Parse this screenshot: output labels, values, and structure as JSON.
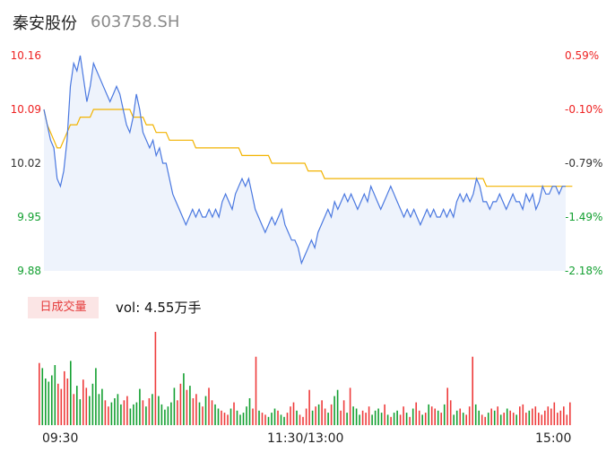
{
  "header": {
    "name": "秦安股份",
    "code": "603758.SH"
  },
  "price_axis": [
    {
      "price": "10.16",
      "pct": "0.59%",
      "color": "red"
    },
    {
      "price": "10.09",
      "pct": "-0.10%",
      "color": "red"
    },
    {
      "price": "10.02",
      "pct": "-0.79%",
      "color": "dark"
    },
    {
      "price": "9.95",
      "pct": "-1.49%",
      "color": "green"
    },
    {
      "price": "9.88",
      "pct": "-2.18%",
      "color": "green"
    }
  ],
  "volume": {
    "tab_label": "日成交量",
    "vol_text": "vol: 4.55万手"
  },
  "time_axis": [
    "09:30",
    "11:30/13:00",
    "15:00"
  ],
  "colors": {
    "price_line": "#4a78e0",
    "avg_line": "#f2b300",
    "up": "#ee3b3b",
    "down": "#13a031"
  },
  "chart_data": {
    "type": "line",
    "ylim": [
      9.88,
      10.16
    ],
    "price": [
      10.09,
      10.07,
      10.05,
      10.04,
      10.0,
      9.99,
      10.01,
      10.05,
      10.12,
      10.15,
      10.14,
      10.16,
      10.13,
      10.1,
      10.12,
      10.15,
      10.14,
      10.13,
      10.12,
      10.11,
      10.1,
      10.11,
      10.12,
      10.11,
      10.09,
      10.07,
      10.06,
      10.08,
      10.11,
      10.09,
      10.06,
      10.05,
      10.04,
      10.05,
      10.03,
      10.04,
      10.02,
      10.02,
      10.0,
      9.98,
      9.97,
      9.96,
      9.95,
      9.94,
      9.95,
      9.96,
      9.95,
      9.96,
      9.95,
      9.95,
      9.96,
      9.95,
      9.96,
      9.95,
      9.97,
      9.98,
      9.97,
      9.96,
      9.98,
      9.99,
      10.0,
      9.99,
      10.0,
      9.98,
      9.96,
      9.95,
      9.94,
      9.93,
      9.94,
      9.95,
      9.94,
      9.95,
      9.96,
      9.94,
      9.93,
      9.92,
      9.92,
      9.91,
      9.89,
      9.9,
      9.91,
      9.92,
      9.91,
      9.93,
      9.94,
      9.95,
      9.96,
      9.95,
      9.97,
      9.96,
      9.97,
      9.98,
      9.97,
      9.98,
      9.97,
      9.96,
      9.97,
      9.98,
      9.97,
      9.99,
      9.98,
      9.97,
      9.96,
      9.97,
      9.98,
      9.99,
      9.98,
      9.97,
      9.96,
      9.95,
      9.96,
      9.95,
      9.96,
      9.95,
      9.94,
      9.95,
      9.96,
      9.95,
      9.96,
      9.95,
      9.95,
      9.96,
      9.95,
      9.96,
      9.95,
      9.97,
      9.98,
      9.97,
      9.98,
      9.97,
      9.98,
      10.0,
      9.99,
      9.97,
      9.97,
      9.96,
      9.97,
      9.97,
      9.98,
      9.97,
      9.96,
      9.97,
      9.98,
      9.97,
      9.97,
      9.96,
      9.98,
      9.97,
      9.98,
      9.96,
      9.97,
      9.99,
      9.98,
      9.98,
      9.99,
      9.99,
      9.98,
      9.99,
      9.99
    ],
    "avg": [
      10.09,
      10.07,
      10.06,
      10.05,
      10.04,
      10.04,
      10.05,
      10.06,
      10.07,
      10.07,
      10.07,
      10.08,
      10.08,
      10.08,
      10.08,
      10.09,
      10.09,
      10.09,
      10.09,
      10.09,
      10.09,
      10.09,
      10.09,
      10.09,
      10.09,
      10.09,
      10.09,
      10.08,
      10.08,
      10.08,
      10.08,
      10.07,
      10.07,
      10.07,
      10.06,
      10.06,
      10.06,
      10.06,
      10.05,
      10.05,
      10.05,
      10.05,
      10.05,
      10.05,
      10.05,
      10.05,
      10.04,
      10.04,
      10.04,
      10.04,
      10.04,
      10.04,
      10.04,
      10.04,
      10.04,
      10.04,
      10.04,
      10.04,
      10.04,
      10.04,
      10.03,
      10.03,
      10.03,
      10.03,
      10.03,
      10.03,
      10.03,
      10.03,
      10.03,
      10.02,
      10.02,
      10.02,
      10.02,
      10.02,
      10.02,
      10.02,
      10.02,
      10.02,
      10.02,
      10.02,
      10.01,
      10.01,
      10.01,
      10.01,
      10.01,
      10.0,
      10.0,
      10.0,
      10.0,
      10.0,
      10.0,
      10.0,
      10.0,
      10.0,
      10.0,
      10.0,
      10.0,
      10.0,
      10.0,
      10.0,
      10.0,
      10.0,
      10.0,
      10.0,
      10.0,
      10.0,
      10.0,
      10.0,
      10.0,
      10.0,
      10.0,
      10.0,
      10.0,
      10.0,
      10.0,
      10.0,
      10.0,
      10.0,
      10.0,
      10.0,
      10.0,
      10.0,
      10.0,
      10.0,
      10.0,
      10.0,
      10.0,
      10.0,
      10.0,
      10.0,
      10.0,
      10.0,
      10.0,
      10.0,
      9.99,
      9.99,
      9.99,
      9.99,
      9.99,
      9.99,
      9.99,
      9.99,
      9.99,
      9.99,
      9.99,
      9.99,
      9.99,
      9.99,
      9.99,
      9.99,
      9.99,
      9.99,
      9.99,
      9.99,
      9.99,
      9.99,
      9.99,
      9.99,
      9.99,
      9.99,
      9.99
    ],
    "volume": [
      60,
      55,
      45,
      42,
      48,
      58,
      40,
      35,
      52,
      45,
      62,
      30,
      38,
      25,
      44,
      36,
      28,
      40,
      55,
      30,
      35,
      24,
      18,
      22,
      26,
      30,
      20,
      24,
      28,
      16,
      20,
      22,
      35,
      24,
      18,
      26,
      30,
      90,
      28,
      20,
      15,
      18,
      22,
      36,
      24,
      40,
      50,
      34,
      38,
      26,
      30,
      22,
      18,
      28,
      36,
      24,
      20,
      16,
      14,
      12,
      10,
      16,
      22,
      14,
      10,
      12,
      18,
      26,
      16,
      66,
      14,
      12,
      10,
      8,
      12,
      16,
      14,
      10,
      8,
      12,
      18,
      22,
      14,
      10,
      8,
      16,
      34,
      14,
      18,
      20,
      24,
      16,
      12,
      20,
      28,
      34,
      14,
      24,
      12,
      36,
      18,
      16,
      10,
      14,
      12,
      18,
      10,
      14,
      16,
      12,
      20,
      10,
      8,
      12,
      14,
      10,
      18,
      12,
      8,
      16,
      22,
      14,
      10,
      12,
      20,
      18,
      16,
      14,
      12,
      20,
      36,
      24,
      10,
      14,
      16,
      12,
      10,
      18,
      66,
      20,
      14,
      10,
      8,
      12,
      16,
      14,
      18,
      10,
      12,
      16,
      14,
      12,
      10,
      18,
      20,
      12,
      14,
      16,
      18,
      12,
      10,
      14,
      18,
      16,
      22,
      12,
      14,
      18,
      10,
      22
    ]
  }
}
